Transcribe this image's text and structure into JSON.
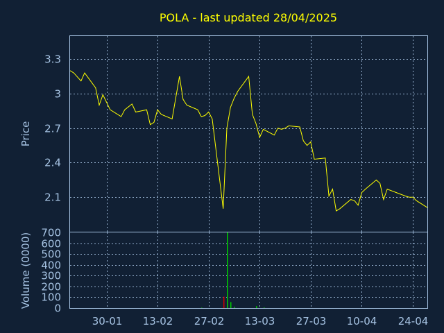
{
  "chart_data": [
    {
      "type": "line",
      "title": "POLA - last updated 28/04/2025",
      "ylabel": "Price",
      "ylim": [
        1.8,
        3.5
      ],
      "yticks": [
        2.1,
        2.4,
        2.7,
        3,
        3.3
      ],
      "ytick_labels": [
        "2.1",
        "2.4",
        "2.7",
        "3",
        "3.3"
      ],
      "xlim": [
        "2025-01-20",
        "2025-04-28"
      ],
      "xticks": [
        "2025-01-30",
        "2025-02-13",
        "2025-02-27",
        "2025-03-13",
        "2025-03-27",
        "2025-04-10",
        "2025-04-24"
      ],
      "xtick_labels": [
        "30-01",
        "13-02",
        "27-02",
        "13-03",
        "27-03",
        "10-04",
        "24-04"
      ],
      "grid": true,
      "line_color": "#ffff00",
      "series": [
        {
          "x": [
            "2025-01-20",
            "2025-01-21",
            "2025-01-23",
            "2025-01-24",
            "2025-01-27",
            "2025-01-28",
            "2025-01-29",
            "2025-01-31",
            "2025-02-03",
            "2025-02-04",
            "2025-02-06",
            "2025-02-07",
            "2025-02-10",
            "2025-02-11",
            "2025-02-12",
            "2025-02-13",
            "2025-02-14",
            "2025-02-17",
            "2025-02-19",
            "2025-02-20",
            "2025-02-21",
            "2025-02-24",
            "2025-02-25",
            "2025-02-26",
            "2025-02-27",
            "2025-02-28",
            "2025-03-03",
            "2025-03-04",
            "2025-03-05",
            "2025-03-06",
            "2025-03-07",
            "2025-03-10",
            "2025-03-11",
            "2025-03-12",
            "2025-03-13",
            "2025-03-14",
            "2025-03-17",
            "2025-03-18",
            "2025-03-19",
            "2025-03-20",
            "2025-03-21",
            "2025-03-24",
            "2025-03-25",
            "2025-03-26",
            "2025-03-27",
            "2025-03-28",
            "2025-03-31",
            "2025-04-01",
            "2025-04-02",
            "2025-04-03",
            "2025-04-04",
            "2025-04-07",
            "2025-04-08",
            "2025-04-09",
            "2025-04-10",
            "2025-04-11",
            "2025-04-14",
            "2025-04-15",
            "2025-04-16",
            "2025-04-17",
            "2025-04-22",
            "2025-04-23",
            "2025-04-24",
            "2025-04-25",
            "2025-04-28"
          ],
          "values": [
            3.2,
            3.18,
            3.11,
            3.18,
            3.05,
            2.9,
            2.99,
            2.86,
            2.8,
            2.86,
            2.91,
            2.84,
            2.86,
            2.73,
            2.75,
            2.86,
            2.82,
            2.78,
            3.15,
            2.95,
            2.9,
            2.86,
            2.8,
            2.81,
            2.84,
            2.78,
            2.0,
            2.7,
            2.88,
            2.96,
            3.02,
            3.15,
            2.82,
            2.74,
            2.62,
            2.69,
            2.64,
            2.7,
            2.69,
            2.7,
            2.72,
            2.71,
            2.59,
            2.55,
            2.58,
            2.43,
            2.44,
            2.11,
            2.17,
            1.98,
            2.0,
            2.08,
            2.07,
            2.03,
            2.14,
            2.17,
            2.25,
            2.22,
            2.08,
            2.17,
            2.11,
            2.1,
            2.1,
            2.07,
            2.01
          ]
        }
      ]
    },
    {
      "type": "bar",
      "ylabel": "Volume (0000)",
      "ylim": [
        0,
        700
      ],
      "yticks": [
        0,
        100,
        200,
        300,
        400,
        500,
        600,
        700
      ],
      "ytick_labels": [
        "0",
        "100",
        "200",
        "300",
        "400",
        "500",
        "600",
        "700"
      ],
      "grid": true,
      "up_color": "#00cc00",
      "down_color": "#cc0000",
      "bars": [
        {
          "x": "2025-02-25",
          "value": 3,
          "direction": "up"
        },
        {
          "x": "2025-03-03",
          "value": 105,
          "direction": "down"
        },
        {
          "x": "2025-03-04",
          "value": 700,
          "direction": "up"
        },
        {
          "x": "2025-03-05",
          "value": 55,
          "direction": "up"
        },
        {
          "x": "2025-03-06",
          "value": 10,
          "direction": "up"
        },
        {
          "x": "2025-03-12",
          "value": 18,
          "direction": "up"
        },
        {
          "x": "2025-03-14",
          "value": 5,
          "direction": "up"
        }
      ]
    }
  ]
}
